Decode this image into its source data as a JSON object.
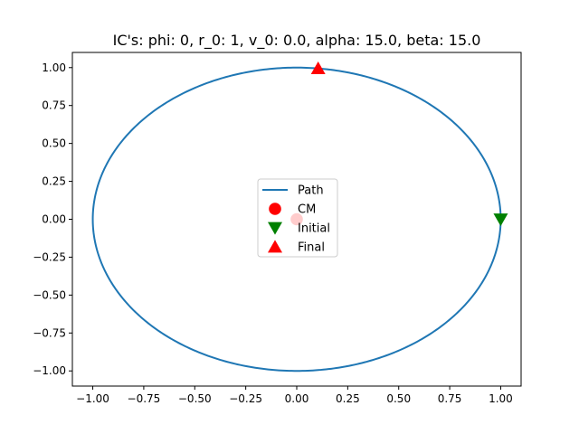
{
  "chart_data": {
    "type": "line",
    "title": "IC's: phi: 0, r_0: 1, v_0: 0.0, alpha: 15.0, beta: 15.0",
    "xlabel": "",
    "ylabel": "",
    "xlim": [
      -1.1,
      1.1
    ],
    "ylim": [
      -1.1,
      1.1
    ],
    "x_ticks": [
      -1.0,
      -0.75,
      -0.5,
      -0.25,
      0.0,
      0.25,
      0.5,
      0.75,
      1.0
    ],
    "x_tick_labels": [
      "−1.00",
      "−0.75",
      "−0.50",
      "−0.25",
      "0.00",
      "0.25",
      "0.50",
      "0.75",
      "1.00"
    ],
    "y_ticks": [
      -1.0,
      -0.75,
      -0.5,
      -0.25,
      0.0,
      0.25,
      0.5,
      0.75,
      1.0
    ],
    "y_tick_labels": [
      "−1.00",
      "−0.75",
      "−0.50",
      "−0.25",
      "0.00",
      "0.25",
      "0.50",
      "0.75",
      "1.00"
    ],
    "grid": false,
    "legend_position": "center",
    "series": [
      {
        "name": "Path",
        "kind": "line",
        "color": "#1f77b4",
        "shape": "circle",
        "center": [
          0.0,
          0.0
        ],
        "radius": 1.0,
        "end_angle_deg": 444
      },
      {
        "name": "CM",
        "kind": "marker",
        "marker": "circle",
        "color": "#ff0000",
        "x": 0.0,
        "y": 0.0
      },
      {
        "name": "Initial",
        "kind": "marker",
        "marker": "triangle-down",
        "color": "#008000",
        "x": 1.0,
        "y": 0.0
      },
      {
        "name": "Final",
        "kind": "marker",
        "marker": "triangle-up",
        "color": "#ff0000",
        "x": 0.105,
        "y": 0.995
      }
    ]
  }
}
